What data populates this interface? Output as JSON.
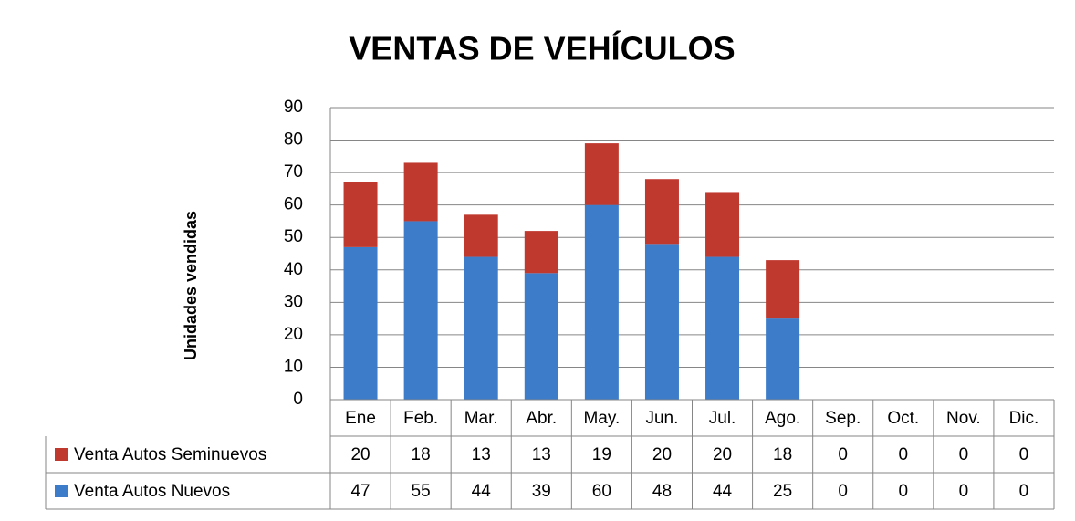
{
  "chart_data": {
    "type": "stacked_bar",
    "title": "VENTAS DE VEHÍCULOS",
    "y_label": "Unidades vendidas",
    "categories": [
      "Ene",
      "Feb.",
      "Mar.",
      "Abr.",
      "May.",
      "Jun.",
      "Jul.",
      "Ago.",
      "Sep.",
      "Oct.",
      "Nov.",
      "Dic."
    ],
    "series": [
      {
        "name": "Venta Autos Seminuevos",
        "color": "#c0392f",
        "values": [
          20,
          18,
          13,
          13,
          19,
          20,
          20,
          18,
          0,
          0,
          0,
          0
        ]
      },
      {
        "name": "Venta Autos Nuevos",
        "color": "#3d7cc9",
        "values": [
          47,
          55,
          44,
          39,
          60,
          48,
          44,
          25,
          0,
          0,
          0,
          0
        ]
      }
    ],
    "ylim": [
      0,
      90
    ],
    "yticks": [
      0,
      10,
      20,
      30,
      40,
      50,
      60,
      70,
      80,
      90
    ],
    "grid": true,
    "data_table": true
  }
}
